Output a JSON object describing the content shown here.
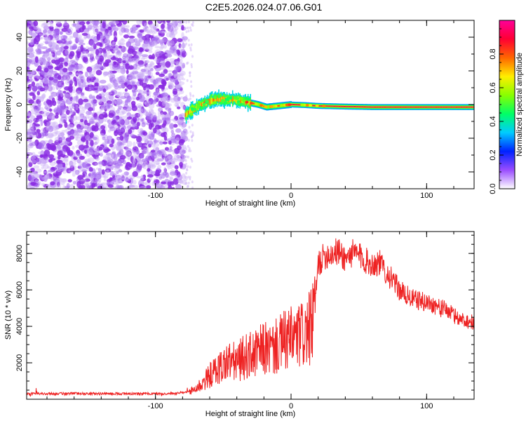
{
  "title": "C2E5.2026.024.07.06.G01",
  "chart_data": [
    {
      "type": "heatmap",
      "xlabel": "Height of straight line (km)",
      "ylabel": "Frequency (Hz)",
      "xlim": [
        -195,
        135
      ],
      "ylim": [
        -50,
        50
      ],
      "x_ticks": [
        -100,
        0,
        100
      ],
      "x_tick_labels": [
        "-100",
        "0",
        "100"
      ],
      "y_ticks": [
        -40,
        -20,
        0,
        20,
        40
      ],
      "y_tick_labels": [
        "-40",
        "-20",
        "0",
        "20",
        "40"
      ],
      "noise_region_x": [
        -195,
        -78
      ],
      "trace": {
        "x": [
          -78,
          -72,
          -66,
          -60,
          -54,
          -48,
          -42,
          -36,
          -30,
          -24,
          -18,
          -12,
          -6,
          0,
          10,
          20,
          30,
          40,
          60,
          80,
          100,
          120,
          135
        ],
        "freq": [
          -6,
          -3,
          0,
          2,
          3.5,
          3,
          3,
          2,
          1,
          0,
          -1.5,
          -1,
          -0.5,
          0,
          -0.3,
          -0.8,
          -1,
          -1.2,
          -1.5,
          -1.5,
          -1.5,
          -1.5,
          -1.5
        ]
      },
      "colorbar": {
        "label": "Normalized spectral amplitude",
        "range": [
          0,
          1
        ],
        "ticks": [
          0,
          0.2,
          0.4,
          0.6,
          0.8
        ],
        "tick_labels": [
          "0.0",
          "0.2",
          "0.4",
          "0.6",
          "0.8"
        ],
        "colors": [
          "#ffffff",
          "#9a4dff",
          "#0022ff",
          "#00ccff",
          "#00ff66",
          "#88ff00",
          "#ffee00",
          "#ff6600",
          "#ff0033",
          "#ff0099"
        ]
      }
    },
    {
      "type": "line",
      "xlabel": "Height of straight line (km)",
      "ylabel": "SNR (10 * v/v)",
      "xlim": [
        -195,
        135
      ],
      "ylim": [
        0,
        9200
      ],
      "x_ticks": [
        -100,
        0,
        100
      ],
      "x_tick_labels": [
        "-100",
        "0",
        "100"
      ],
      "y_ticks": [
        2000,
        4000,
        6000,
        8000
      ],
      "y_tick_labels": [
        "2000",
        "4000",
        "6000",
        "8000"
      ],
      "color": "#ee2222",
      "series": [
        {
          "name": "SNR",
          "x": [
            -195,
            -180,
            -160,
            -140,
            -120,
            -100,
            -85,
            -75,
            -70,
            -65,
            -60,
            -55,
            -50,
            -45,
            -40,
            -35,
            -30,
            -25,
            -20,
            -15,
            -10,
            -5,
            0,
            5,
            10,
            15,
            18,
            20,
            25,
            30,
            35,
            40,
            45,
            50,
            55,
            60,
            65,
            70,
            75,
            80,
            85,
            90,
            95,
            100,
            105,
            110,
            115,
            120,
            125,
            130,
            135
          ],
          "y": [
            300,
            300,
            320,
            300,
            310,
            300,
            320,
            400,
            600,
            900,
            1300,
            1600,
            1900,
            2100,
            2000,
            2300,
            2400,
            2500,
            2800,
            2700,
            2900,
            3200,
            3300,
            3400,
            3600,
            3900,
            5500,
            7400,
            7900,
            8000,
            8100,
            7700,
            8000,
            7900,
            7600,
            7400,
            7500,
            7000,
            6500,
            6000,
            5700,
            5500,
            5400,
            5300,
            5200,
            5000,
            4900,
            4600,
            4400,
            4300,
            4200
          ]
        }
      ]
    }
  ]
}
